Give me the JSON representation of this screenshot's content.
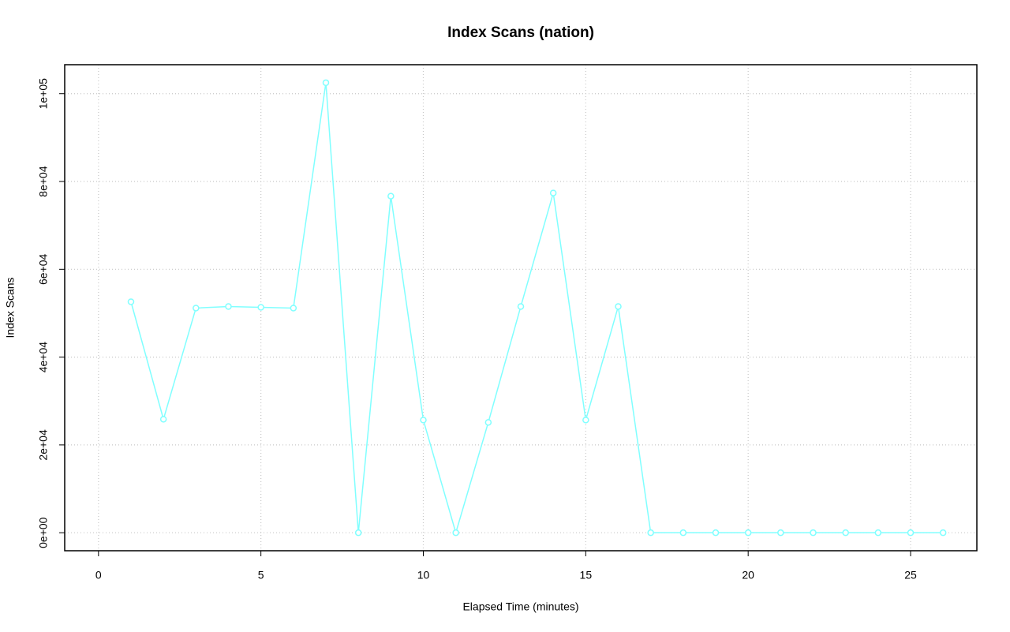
{
  "chart_data": {
    "type": "line",
    "title": "Index Scans (nation)",
    "x_label": "Elapsed Time (minutes)",
    "y_label": "Index Scans",
    "x": [
      1,
      2,
      3,
      4,
      5,
      6,
      7,
      8,
      9,
      10,
      11,
      12,
      13,
      14,
      15,
      16,
      17,
      18,
      19,
      20,
      21,
      22,
      23,
      24,
      25,
      26
    ],
    "series": [
      {
        "name": "Index Scans",
        "color": "#80ffff",
        "values": [
          52600,
          25850,
          51170,
          51530,
          51350,
          51170,
          102500,
          0,
          76660,
          25670,
          0,
          25130,
          51530,
          77380,
          25670,
          51530,
          0,
          0,
          0,
          0,
          0,
          0,
          0,
          0,
          0,
          0
        ]
      }
    ],
    "xlim": [
      -1.04,
      27.04
    ],
    "xticks": [
      0,
      5,
      10,
      15,
      20,
      25
    ],
    "ylim": [
      -4100,
      106600
    ],
    "yticks": [
      {
        "value": 0,
        "label": "0e+00"
      },
      {
        "value": 20000,
        "label": "2e+04"
      },
      {
        "value": 40000,
        "label": "4e+04"
      },
      {
        "value": 60000,
        "label": "6e+04"
      },
      {
        "value": 80000,
        "label": "8e+04"
      },
      {
        "value": 100000,
        "label": "1e+05"
      }
    ],
    "grid": true,
    "markers": "open-circle"
  }
}
